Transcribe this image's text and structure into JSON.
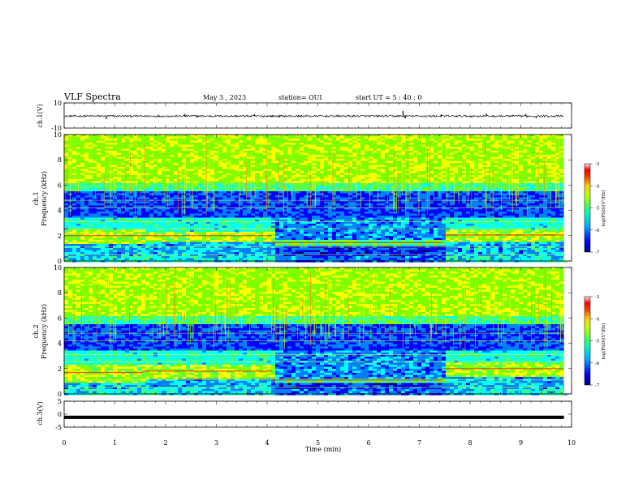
{
  "header": {
    "title": "VLF Spectra",
    "date": "May 3  , 2023",
    "station": "station= OUI",
    "start": "start  UT =  5 : 40 : 0"
  },
  "chart_data": [
    {
      "type": "line",
      "id": "ch1-waveform",
      "ylabel": "ch.1(V)",
      "ylim": [
        -10,
        10
      ],
      "yticks": [
        "10",
        "-10"
      ],
      "xlim": [
        0,
        10
      ],
      "baseline": -0.5,
      "spikes": [
        {
          "t": 0.83,
          "v": -2.8
        },
        {
          "t": 2.38,
          "v": 1.2
        },
        {
          "t": 3.75,
          "v": 1.0
        },
        {
          "t": 6.68,
          "v": 3.6
        },
        {
          "t": 6.72,
          "v": -2.4
        },
        {
          "t": 7.43,
          "v": 1.0
        },
        {
          "t": 8.32,
          "v": 1.4
        },
        {
          "t": 9.1,
          "v": 1.2
        },
        {
          "t": 9.3,
          "v": -2.0
        }
      ]
    },
    {
      "type": "heatmap",
      "id": "ch1-spectrogram",
      "ylabel_top": "ch.1",
      "ylabel": "Frequency (kHz)",
      "ylim": [
        0,
        10
      ],
      "yticks": [
        "0",
        "2",
        "4",
        "6",
        "8",
        "10"
      ],
      "xlim": [
        0,
        9.85
      ],
      "colorbar": {
        "label": "log(PSD)(V²/Hz)",
        "range": [
          -7,
          -3
        ],
        "ticks": [
          "-3",
          "-4",
          "-5",
          "-6",
          "-7"
        ]
      },
      "segments": [
        {
          "t0": 0,
          "t1": 1.55,
          "band": [
            1.4,
            2.6
          ]
        },
        {
          "t0": 1.55,
          "t1": 4.1,
          "band": [
            1.6,
            2.4
          ]
        },
        {
          "t0": 4.1,
          "t1": 7.45,
          "band": [
            1.2,
            1.7
          ]
        },
        {
          "t0": 7.45,
          "t1": 9.85,
          "band": [
            1.6,
            2.5
          ]
        }
      ]
    },
    {
      "type": "heatmap",
      "id": "ch2-spectrogram",
      "ylabel_top": "ch.2",
      "ylabel": "Frequency (kHz)",
      "ylim": [
        0,
        10
      ],
      "yticks": [
        "0",
        "2",
        "4",
        "6",
        "8",
        "10"
      ],
      "xlim": [
        0,
        9.85
      ],
      "colorbar": {
        "label": "log(PSD)(V²/Hz)",
        "range": [
          -7,
          -3
        ],
        "ticks": [
          "-3",
          "-4",
          "-5",
          "-6",
          "-7"
        ]
      },
      "segments": [
        {
          "t0": 0,
          "t1": 1.55,
          "band": [
            1.0,
            2.4
          ]
        },
        {
          "t0": 1.55,
          "t1": 4.1,
          "band": [
            1.2,
            2.4
          ]
        },
        {
          "t0": 4.1,
          "t1": 7.45,
          "band": [
            0.9,
            1.3
          ]
        },
        {
          "t0": 7.45,
          "t1": 9.85,
          "band": [
            1.4,
            2.6
          ]
        }
      ]
    },
    {
      "type": "line",
      "id": "ch3-waveform",
      "ylabel": "ch.3(V)",
      "ylim": [
        -5,
        5
      ],
      "yticks": [
        "5",
        "0",
        "-5"
      ],
      "xlim": [
        0,
        10
      ],
      "baseline": -1.2
    }
  ],
  "xaxis": {
    "label": "Time  (min)",
    "ticks": [
      "0",
      "1",
      "2",
      "3",
      "4",
      "5",
      "6",
      "7",
      "8",
      "9",
      "10"
    ],
    "range": [
      0,
      10
    ]
  },
  "colors": {
    "colormap": [
      "#00007f",
      "#0000ff",
      "#0080ff",
      "#00ffff",
      "#40ff80",
      "#80ff00",
      "#ffff00",
      "#ff8000",
      "#ff0000",
      "#ffe0e0"
    ]
  }
}
